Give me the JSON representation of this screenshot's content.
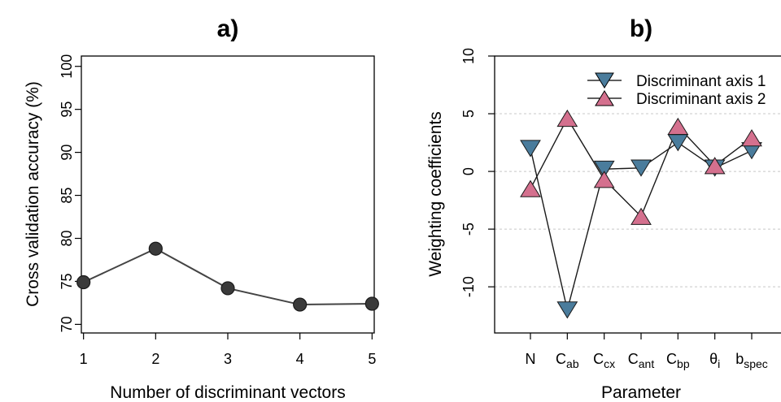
{
  "chart_data": [
    {
      "type": "line",
      "panel_label": "a)",
      "xlabel": "Number of discriminant vectors",
      "ylabel": "Cross validation accuracy (%)",
      "x": [
        1,
        2,
        3,
        4,
        5
      ],
      "x_ticks": [
        "1",
        "2",
        "3",
        "4",
        "5"
      ],
      "y_ticks": [
        "70",
        "75",
        "80",
        "85",
        "90",
        "95",
        "100"
      ],
      "xlim": [
        0.97,
        5.03
      ],
      "ylim": [
        69,
        101.2
      ],
      "series": [
        {
          "values": [
            74.9,
            78.8,
            74.2,
            72.3,
            72.4
          ],
          "color": "#3a3a3a",
          "marker": "circle"
        }
      ],
      "grid": false
    },
    {
      "type": "line",
      "panel_label": "b)",
      "xlabel": "Parameter",
      "ylabel": "Weighting coefficients",
      "categories": [
        {
          "base": "N",
          "sub": ""
        },
        {
          "base": "C",
          "sub": "ab"
        },
        {
          "base": "C",
          "sub": "cx"
        },
        {
          "base": "C",
          "sub": "ant"
        },
        {
          "base": "C",
          "sub": "bp"
        },
        {
          "base": "θ",
          "sub": "i"
        },
        {
          "base": "b",
          "sub": "spec"
        }
      ],
      "y_ticks": [
        "10",
        "5",
        "0",
        "-5",
        "-10"
      ],
      "ylim": [
        -14,
        10
      ],
      "grid": "horizontal dotted",
      "legend_position": "top-right",
      "series": [
        {
          "name": "Discriminant axis 1",
          "values": [
            2.0,
            -12.0,
            0.2,
            0.3,
            2.5,
            0.3,
            1.8
          ],
          "color": "#4a7c9c",
          "marker": "triangle-down"
        },
        {
          "name": "Discriminant axis 2",
          "values": [
            -1.5,
            4.6,
            -0.7,
            -3.9,
            3.9,
            0.5,
            2.9
          ],
          "color": "#d4708e",
          "marker": "triangle-up"
        }
      ]
    }
  ]
}
